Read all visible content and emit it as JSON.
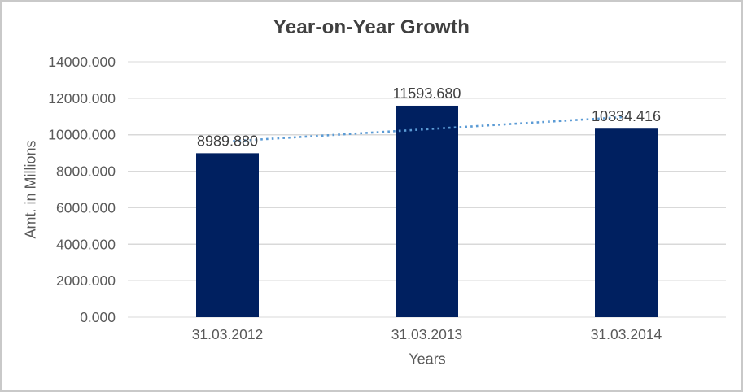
{
  "chart_data": {
    "type": "bar",
    "title": "Year-on-Year Growth",
    "xlabel": "Years",
    "ylabel": "Amt. in Millions",
    "categories": [
      "31.03.2012",
      "31.03.2013",
      "31.03.2014"
    ],
    "values": [
      8989.88,
      11593.68,
      10334.416
    ],
    "data_labels": [
      "8989.880",
      "11593.680",
      "10334.416"
    ],
    "ylim": [
      0,
      14000
    ],
    "ytick_step": 2000,
    "ytick_labels": [
      "0.000",
      "2000.000",
      "4000.000",
      "6000.000",
      "8000.000",
      "10000.000",
      "12000.000",
      "14000.000"
    ],
    "grid": true,
    "legend": "none",
    "bar_color": "#002060",
    "grid_color": "#d9d9d9",
    "tick_color": "#595959",
    "data_label_color": "#404040",
    "title_color": "#404040",
    "trendline": {
      "type": "linear",
      "style": "dotted",
      "color": "#5b9bd5"
    }
  }
}
